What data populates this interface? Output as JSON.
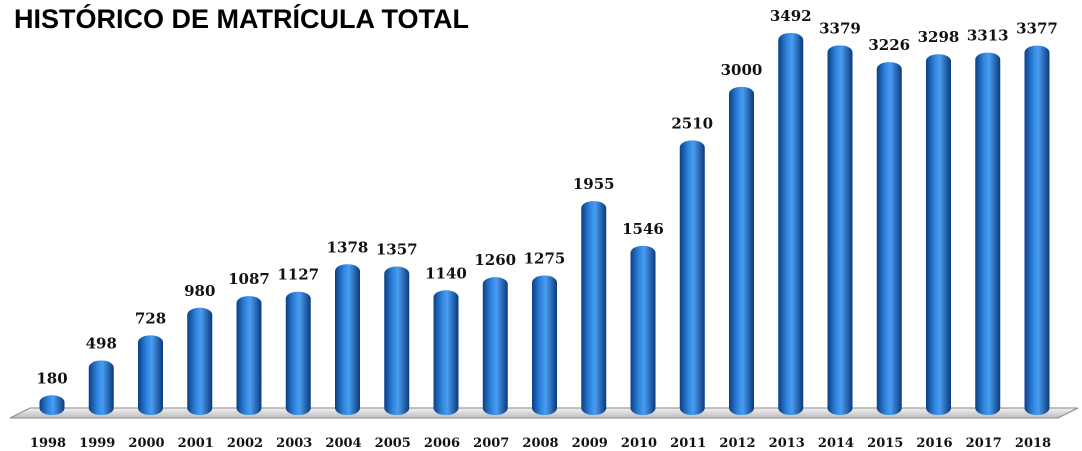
{
  "chart_data": {
    "type": "bar",
    "title": "HISTÓRICO DE MATRÍCULA TOTAL",
    "categories": [
      "1998",
      "1999",
      "2000",
      "2001",
      "2002",
      "2003",
      "2004",
      "2005",
      "2006",
      "2007",
      "2008",
      "2009",
      "2010",
      "2011",
      "2012",
      "2013",
      "2014",
      "2015",
      "2016",
      "2017",
      "2018"
    ],
    "values": [
      180,
      498,
      728,
      980,
      1087,
      1127,
      1378,
      1357,
      1140,
      1260,
      1275,
      1955,
      1546,
      2510,
      3000,
      3492,
      3379,
      3226,
      3298,
      3313,
      3377
    ],
    "color": "#1565c0"
  }
}
